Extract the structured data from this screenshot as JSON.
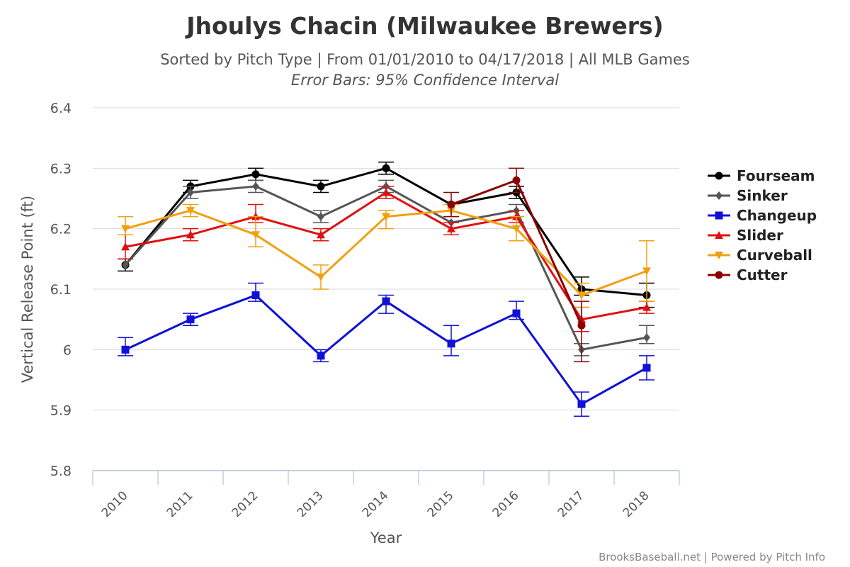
{
  "chart_data": {
    "type": "line",
    "title": "Jhoulys Chacin (Milwaukee Brewers)",
    "subtitle": "Sorted by Pitch Type | From 01/01/2010 to 04/17/2018 | All MLB Games",
    "subtitle2": "Error Bars: 95% Confidence Interval",
    "xlabel": "Year",
    "ylabel": "Vertical Release Point (ft)",
    "categories": [
      "2010",
      "2011",
      "2012",
      "2013",
      "2014",
      "2015",
      "2016",
      "2017",
      "2018"
    ],
    "ylim": [
      5.8,
      6.4
    ],
    "yticks": [
      5.8,
      5.9,
      6,
      6.1,
      6.2,
      6.3,
      6.4
    ],
    "ytick_labels": [
      "5.8",
      "5.9",
      "6",
      "6.1",
      "6.2",
      "6.3",
      "6.4"
    ],
    "grid": true,
    "legend_position": "right",
    "credits": "BrooksBaseball.net | Powered by Pitch Info",
    "series": [
      {
        "name": "Fourseam",
        "color": "#000000",
        "marker": "circle",
        "values": [
          6.14,
          6.27,
          6.29,
          6.27,
          6.3,
          6.24,
          6.26,
          6.1,
          6.09
        ],
        "error": [
          [
            6.13,
            6.15
          ],
          [
            6.26,
            6.28
          ],
          [
            6.28,
            6.3
          ],
          [
            6.26,
            6.28
          ],
          [
            6.29,
            6.31
          ],
          null,
          [
            6.25,
            6.27
          ],
          [
            6.09,
            6.12
          ],
          [
            6.07,
            6.11
          ]
        ]
      },
      {
        "name": "Sinker",
        "color": "#555555",
        "marker": "diamond",
        "values": [
          6.14,
          6.26,
          6.27,
          6.22,
          6.27,
          6.21,
          6.23,
          6.0,
          6.02
        ],
        "error": [
          null,
          [
            6.25,
            6.27
          ],
          [
            6.26,
            6.28
          ],
          [
            6.21,
            6.23
          ],
          [
            6.26,
            6.28
          ],
          null,
          [
            6.22,
            6.24
          ],
          [
            5.99,
            6.01
          ],
          [
            6.01,
            6.04
          ]
        ]
      },
      {
        "name": "Changeup",
        "color": "#1010d8",
        "marker": "square",
        "values": [
          6.0,
          6.05,
          6.09,
          5.99,
          6.08,
          6.01,
          6.06,
          5.91,
          5.97
        ],
        "error": [
          [
            5.99,
            6.02
          ],
          [
            6.04,
            6.06
          ],
          [
            6.08,
            6.11
          ],
          [
            5.98,
            6.0
          ],
          [
            6.06,
            6.09
          ],
          [
            5.99,
            6.04
          ],
          [
            6.05,
            6.08
          ],
          [
            5.89,
            5.93
          ],
          [
            5.95,
            5.99
          ]
        ]
      },
      {
        "name": "Slider",
        "color": "#e01010",
        "marker": "triangle",
        "values": [
          6.17,
          6.19,
          6.22,
          6.19,
          6.26,
          6.2,
          6.22,
          6.05,
          6.07
        ],
        "error": [
          [
            6.15,
            6.19
          ],
          [
            6.18,
            6.2
          ],
          [
            6.21,
            6.24
          ],
          [
            6.18,
            6.2
          ],
          [
            6.25,
            6.27
          ],
          [
            6.19,
            6.21
          ],
          [
            6.21,
            6.23
          ],
          [
            6.03,
            6.07
          ],
          [
            6.06,
            6.08
          ]
        ]
      },
      {
        "name": "Curveball",
        "color": "#f0a010",
        "marker": "triangle-down",
        "values": [
          6.2,
          6.23,
          6.19,
          6.12,
          6.22,
          6.23,
          6.2,
          6.09,
          6.13
        ],
        "error": [
          [
            6.19,
            6.22
          ],
          [
            6.22,
            6.24
          ],
          [
            6.17,
            6.22
          ],
          [
            6.1,
            6.14
          ],
          [
            6.2,
            6.23
          ],
          [
            6.22,
            6.24
          ],
          [
            6.18,
            6.22
          ],
          [
            6.07,
            6.11
          ],
          [
            6.08,
            6.18
          ]
        ]
      },
      {
        "name": "Cutter",
        "color": "#8b0000",
        "marker": "circle",
        "values": [
          null,
          null,
          null,
          null,
          null,
          6.24,
          6.28,
          6.04,
          null
        ],
        "error": [
          null,
          null,
          null,
          null,
          null,
          [
            6.22,
            6.26
          ],
          [
            6.26,
            6.3
          ],
          [
            5.98,
            6.08
          ],
          null
        ]
      }
    ]
  }
}
